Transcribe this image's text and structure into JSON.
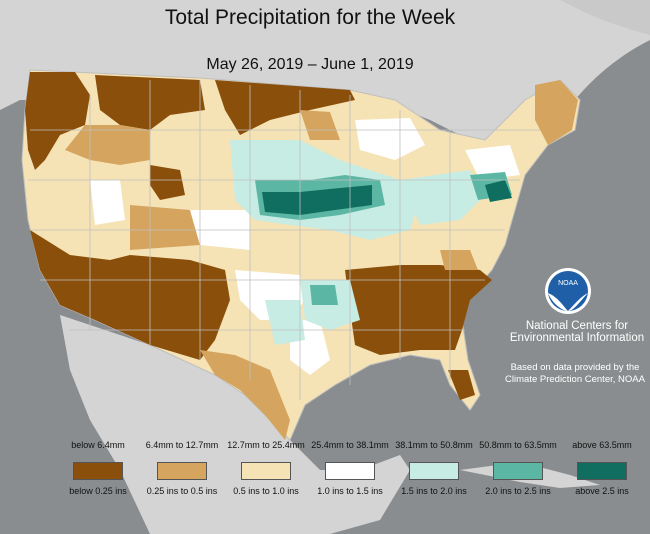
{
  "title": "Total Precipitation for the Week",
  "date_range": "May 26, 2019 – June 1, 2019",
  "org": "National Centers for Environmental Information",
  "source": "Based on data provided by the Climate Prediction Center, NOAA",
  "logo_text": "NOAA",
  "colors": {
    "ocean": "#8a8d8f",
    "land_foreign": "#d4d4d4",
    "state_border": "#bfbfbf",
    "cat1": "#8b4f0c",
    "cat2": "#d5a55f",
    "cat3": "#f5e3b5",
    "cat4": "#ffffff",
    "cat5": "#c7ece3",
    "cat6": "#5bb7a4",
    "cat7": "#0f6e60"
  },
  "legend": [
    {
      "mm": "below 6.4mm",
      "inches": "below 0.25 ins",
      "color": "#8b4f0c"
    },
    {
      "mm": "6.4mm to 12.7mm",
      "inches": "0.25 ins to 0.5 ins",
      "color": "#d5a55f"
    },
    {
      "mm": "12.7mm to 25.4mm",
      "inches": "0.5 ins to 1.0 ins",
      "color": "#f5e3b5"
    },
    {
      "mm": "25.4mm to 38.1mm",
      "inches": "1.0 ins to 1.5 ins",
      "color": "#ffffff"
    },
    {
      "mm": "38.1mm to 50.8mm",
      "inches": "1.5 ins to 2.0 ins",
      "color": "#c7ece3"
    },
    {
      "mm": "50.8mm to 63.5mm",
      "inches": "2.0 ins to 2.5 ins",
      "color": "#5bb7a4"
    },
    {
      "mm": "above 63.5mm",
      "inches": "above 2.5 ins",
      "color": "#0f6e60"
    }
  ]
}
